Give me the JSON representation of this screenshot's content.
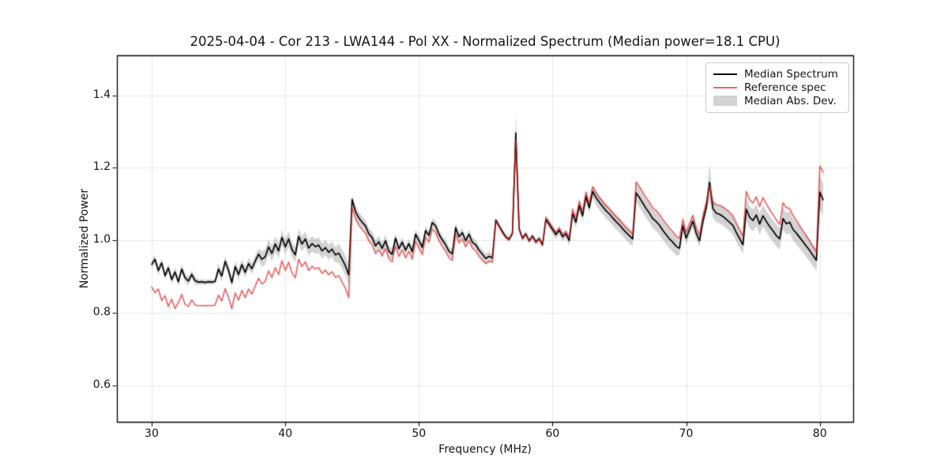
{
  "chart_data": {
    "type": "line",
    "title": "2025-04-04 - Cor 213 - LWA144 - Pol XX - Normalized Spectrum (Median power=18.1 CPU)",
    "xlabel": "Frequency (MHz)",
    "ylabel": "Normalized Power",
    "xlim": [
      27.4,
      82.5
    ],
    "ylim": [
      0.5,
      1.51
    ],
    "xticks": [
      30,
      40,
      50,
      60,
      70,
      80
    ],
    "xtick_labels": [
      "30",
      "40",
      "50",
      "60",
      "70",
      "80"
    ],
    "yticks": [
      0.6,
      0.8,
      1.0,
      1.2,
      1.4
    ],
    "ytick_labels": [
      "0.6",
      "0.8",
      "1.0",
      "1.2",
      "1.4"
    ],
    "grid": true,
    "grid_color": "#e7e7e7",
    "legend_position": "upper right",
    "x_start": 30.0,
    "x_step": 0.25,
    "series": [
      {
        "name": "Median Spectrum",
        "color": "#000000",
        "values": [
          0.934,
          0.948,
          0.917,
          0.938,
          0.903,
          0.924,
          0.892,
          0.913,
          0.886,
          0.921,
          0.897,
          0.888,
          0.906,
          0.889,
          0.885,
          0.886,
          0.884,
          0.886,
          0.885,
          0.887,
          0.921,
          0.902,
          0.942,
          0.918,
          0.884,
          0.928,
          0.906,
          0.933,
          0.912,
          0.936,
          0.922,
          0.943,
          0.962,
          0.948,
          0.955,
          0.982,
          0.964,
          0.99,
          0.971,
          1.008,
          0.982,
          1.004,
          0.975,
          0.96,
          1.011,
          0.99,
          1.004,
          0.979,
          0.991,
          0.983,
          0.987,
          0.971,
          0.98,
          0.967,
          0.976,
          0.96,
          0.965,
          0.948,
          0.93,
          0.905,
          1.113,
          1.08,
          1.062,
          1.05,
          1.04,
          1.018,
          1.008,
          0.985,
          0.996,
          0.978,
          0.999,
          0.97,
          0.962,
          1.006,
          0.977,
          0.995,
          0.973,
          0.991,
          0.969,
          1.017,
          1.0,
          0.981,
          1.027,
          1.014,
          1.049,
          1.04,
          1.017,
          1.001,
          0.988,
          0.97,
          0.963,
          1.035,
          1.01,
          1.021,
          0.999,
          1.017,
          0.995,
          0.988,
          0.973,
          0.962,
          0.95,
          0.956,
          0.952,
          1.056,
          1.04,
          1.024,
          1.01,
          1.003,
          1.02,
          1.296,
          1.032,
          1.006,
          1.018,
          0.999,
          1.012,
          0.996,
          1.005,
          0.988,
          1.057,
          1.044,
          1.03,
          1.016,
          1.028,
          1.01,
          1.018,
          1.0,
          1.074,
          1.05,
          1.096,
          1.068,
          1.121,
          1.09,
          1.135,
          1.118,
          1.105,
          1.093,
          1.082,
          1.073,
          1.062,
          1.052,
          1.043,
          1.032,
          1.022,
          1.013,
          1.004,
          1.131,
          1.118,
          1.103,
          1.088,
          1.075,
          1.06,
          1.052,
          1.042,
          1.028,
          1.016,
          1.004,
          0.995,
          0.984,
          0.978,
          1.041,
          1.006,
          1.03,
          1.053,
          1.02,
          0.999,
          1.052,
          1.09,
          1.16,
          1.088,
          1.075,
          1.072,
          1.066,
          1.058,
          1.05,
          1.041,
          1.022,
          1.005,
          0.988,
          1.086,
          1.064,
          1.055,
          1.07,
          1.045,
          1.068,
          1.052,
          1.038,
          1.026,
          1.013,
          1.004,
          1.06,
          1.046,
          1.05,
          1.03,
          1.02,
          1.008,
          0.996,
          0.984,
          0.972,
          0.958,
          0.945,
          1.133,
          1.112
        ]
      },
      {
        "name": "Reference spec",
        "color": "rgba(225,32,32,0.68)",
        "values": [
          0.872,
          0.856,
          0.866,
          0.834,
          0.848,
          0.818,
          0.838,
          0.812,
          0.829,
          0.851,
          0.824,
          0.818,
          0.836,
          0.822,
          0.82,
          0.821,
          0.819,
          0.821,
          0.82,
          0.822,
          0.849,
          0.833,
          0.867,
          0.843,
          0.812,
          0.855,
          0.836,
          0.862,
          0.842,
          0.866,
          0.852,
          0.874,
          0.896,
          0.88,
          0.887,
          0.916,
          0.898,
          0.925,
          0.906,
          0.944,
          0.917,
          0.94,
          0.911,
          0.897,
          0.948,
          0.928,
          0.941,
          0.917,
          0.929,
          0.921,
          0.925,
          0.909,
          0.918,
          0.905,
          0.914,
          0.898,
          0.903,
          0.885,
          0.868,
          0.842,
          1.092,
          1.06,
          1.042,
          1.03,
          1.02,
          0.998,
          0.988,
          0.964,
          0.975,
          0.957,
          0.978,
          0.949,
          0.941,
          0.985,
          0.956,
          0.974,
          0.952,
          0.97,
          0.948,
          0.997,
          0.98,
          0.961,
          1.008,
          0.995,
          1.031,
          1.022,
          0.999,
          0.983,
          0.97,
          0.952,
          0.945,
          1.018,
          0.993,
          1.004,
          0.982,
          1.0,
          0.978,
          0.971,
          0.956,
          0.946,
          0.936,
          0.942,
          0.94,
          1.052,
          1.037,
          1.021,
          1.008,
          1.001,
          1.018,
          1.277,
          1.03,
          1.004,
          1.016,
          0.997,
          1.01,
          0.994,
          1.003,
          0.986,
          1.063,
          1.05,
          1.036,
          1.022,
          1.034,
          1.016,
          1.024,
          1.008,
          1.086,
          1.062,
          1.108,
          1.08,
          1.133,
          1.102,
          1.148,
          1.131,
          1.118,
          1.106,
          1.095,
          1.086,
          1.075,
          1.065,
          1.056,
          1.045,
          1.035,
          1.026,
          1.017,
          1.161,
          1.148,
          1.133,
          1.118,
          1.105,
          1.09,
          1.082,
          1.072,
          1.058,
          1.046,
          1.034,
          1.024,
          1.012,
          1.005,
          1.058,
          1.022,
          1.046,
          1.069,
          1.036,
          1.015,
          1.068,
          1.104,
          1.15,
          1.106,
          1.098,
          1.097,
          1.092,
          1.085,
          1.078,
          1.068,
          1.048,
          1.03,
          1.012,
          1.135,
          1.112,
          1.103,
          1.12,
          1.093,
          1.118,
          1.1,
          1.085,
          1.071,
          1.056,
          1.044,
          1.104,
          1.09,
          1.088,
          1.068,
          1.055,
          1.04,
          1.026,
          1.012,
          0.998,
          0.982,
          0.968,
          1.205,
          1.188
        ]
      }
    ],
    "band": {
      "name": "Median Abs. Dev.",
      "around": "Median Spectrum",
      "color": "rgba(150,150,150,0.42)",
      "half_width_segments": [
        [
          30.0,
          33.4,
          0.012
        ],
        [
          33.4,
          34.9,
          0.007
        ],
        [
          34.9,
          38.0,
          0.015
        ],
        [
          38.0,
          43.9,
          0.021
        ],
        [
          43.9,
          44.9,
          0.027
        ],
        [
          44.9,
          45.15,
          0.012
        ],
        [
          45.15,
          48.0,
          0.016
        ],
        [
          48.0,
          55.4,
          0.013
        ],
        [
          55.4,
          57.1,
          0.008
        ],
        [
          57.1,
          57.4,
          0.056
        ],
        [
          57.4,
          59.4,
          0.008
        ],
        [
          59.4,
          61.0,
          0.012
        ],
        [
          61.0,
          63.0,
          0.016
        ],
        [
          63.0,
          66.0,
          0.021
        ],
        [
          66.0,
          69.4,
          0.026
        ],
        [
          69.4,
          71.6,
          0.018
        ],
        [
          71.6,
          71.9,
          0.05
        ],
        [
          71.9,
          74.3,
          0.025
        ],
        [
          74.3,
          79.9,
          0.03
        ],
        [
          79.9,
          80.4,
          0.045
        ]
      ]
    }
  }
}
